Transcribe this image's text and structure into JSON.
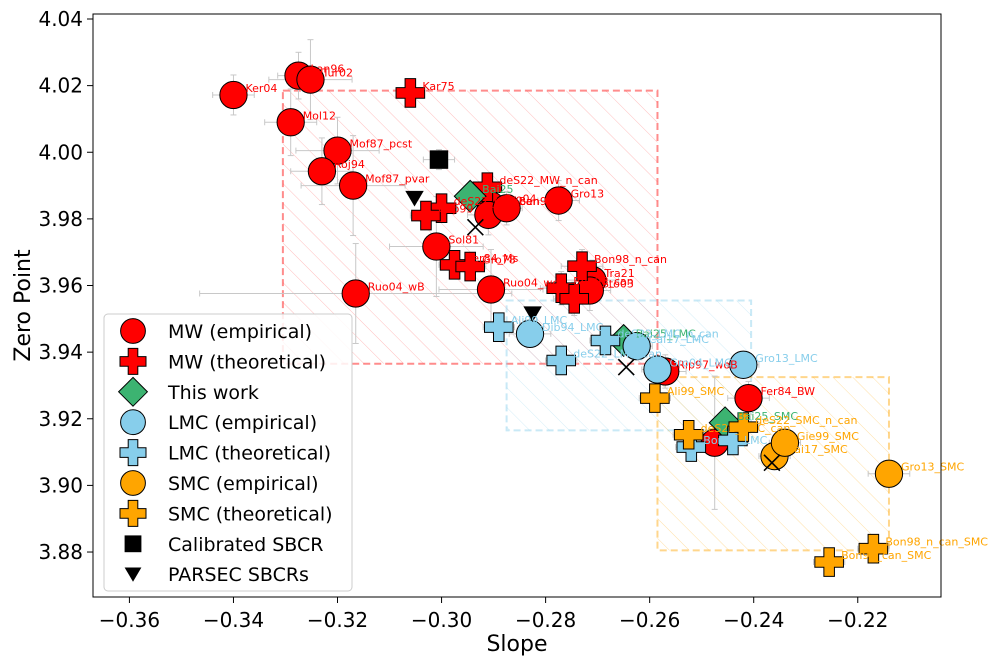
{
  "chart_data": {
    "type": "scatter",
    "title": "",
    "xlabel": "Slope",
    "ylabel": "Zero Point",
    "xlim": [
      -0.367,
      -0.204
    ],
    "ylim": [
      3.8665,
      4.0415
    ],
    "xticks": [
      -0.36,
      -0.34,
      -0.32,
      -0.3,
      -0.28,
      -0.26,
      -0.24,
      -0.22
    ],
    "xtick_labels": [
      "−0.36",
      "−0.34",
      "−0.32",
      "−0.30",
      "−0.28",
      "−0.26",
      "−0.24",
      "−0.22"
    ],
    "yticks": [
      3.88,
      3.9,
      3.92,
      3.94,
      3.96,
      3.98,
      4.0,
      4.02,
      4.04
    ],
    "ytick_labels": [
      "3.88",
      "3.90",
      "3.92",
      "3.94",
      "3.96",
      "3.98",
      "4.00",
      "4.02",
      "4.04"
    ],
    "colors": {
      "mw": "#ff0000",
      "lmc": "#87ceeb",
      "smc": "#ffa500",
      "this_work": "#3cb371",
      "black": "#000000"
    },
    "regions": [
      {
        "name": "MW region",
        "x": [
          -0.3305,
          -0.2585
        ],
        "y": [
          3.9365,
          4.0185
        ],
        "color": "#ff0000"
      },
      {
        "name": "LMC region",
        "x": [
          -0.2875,
          -0.2405
        ],
        "y": [
          3.9165,
          3.9555
        ],
        "color": "#87ceeb"
      },
      {
        "name": "SMC region",
        "x": [
          -0.2585,
          -0.214
        ],
        "y": [
          3.8805,
          3.9325
        ],
        "color": "#ffa500"
      }
    ],
    "series": [
      {
        "name": "MW (empirical)",
        "marker": "circle",
        "color": "#ff0000",
        "label_color": "#ff0000",
        "points": [
          {
            "x": -0.34,
            "y": 4.0172,
            "xerr": 0.004,
            "yerr": 0.006,
            "label": "Ker04"
          },
          {
            "x": -0.3275,
            "y": 4.023,
            "xerr": 0.004,
            "yerr": 0.007,
            "label": "Lan96"
          },
          {
            "x": -0.3252,
            "y": 4.0218,
            "xerr": 0.008,
            "yerr": 0.012,
            "label": "Tur02"
          },
          {
            "x": -0.329,
            "y": 4.009,
            "xerr": 0.005,
            "yerr": 0.01,
            "label": "Mol12"
          },
          {
            "x": -0.32,
            "y": 4.0005,
            "xerr": 0.008,
            "yerr": 0.01,
            "label": "Mof87_pcst"
          },
          {
            "x": -0.323,
            "y": 3.9943,
            "xerr": 0.006,
            "yerr": 0.01,
            "label": "Roj94"
          },
          {
            "x": -0.317,
            "y": 3.99,
            "xerr": 0.01,
            "yerr": 0.015,
            "label": "Mof87_pvar"
          },
          {
            "x": -0.301,
            "y": 3.9717,
            "xerr": 0.009,
            "yerr": 0.015,
            "label": "Sol81"
          },
          {
            "x": -0.3165,
            "y": 3.9576,
            "xerr": 0.03,
            "yerr": 0.015,
            "label": "Ruo04_wB"
          },
          {
            "x": -0.2905,
            "y": 3.9588,
            "xerr": 0.01,
            "yerr": 0.012,
            "label": "Ruo04_woB"
          },
          {
            "x": -0.2905,
            "y": 3.984,
            "xerr": 0.004,
            "yerr": 0.006,
            "label": "Gro04"
          },
          {
            "x": -0.291,
            "y": 3.9812,
            "xerr": 0.004,
            "yerr": 0.006,
            "label": ""
          },
          {
            "x": -0.2875,
            "y": 3.9832,
            "xerr": 0.003,
            "yerr": 0.005,
            "label": "Ben99"
          },
          {
            "x": -0.2775,
            "y": 3.9855,
            "xerr": 0.004,
            "yerr": 0.006,
            "label": "Gro13"
          },
          {
            "x": -0.271,
            "y": 3.9616,
            "xerr": 0.005,
            "yerr": 0.006,
            "label": "Tra21"
          },
          {
            "x": -0.2715,
            "y": 3.9585,
            "xerr": 0.004,
            "yerr": 0.006,
            "label": "Sto03"
          },
          {
            "x": -0.257,
            "y": 3.9342,
            "xerr": 0.004,
            "yerr": 0.005,
            "label": "Rip97_woB"
          },
          {
            "x": -0.241,
            "y": 3.9262,
            "xerr": 0.004,
            "yerr": 0.005,
            "label": "Fer84_BW"
          },
          {
            "x": -0.2475,
            "y": 3.9128,
            "xerr": 0.003,
            "yerr": 0.02,
            "label": ""
          }
        ]
      },
      {
        "name": "MW (theoretical)",
        "marker": "plus",
        "color": "#ff0000",
        "label_color": "#ff0000",
        "points": [
          {
            "x": -0.306,
            "y": 4.0178,
            "xerr": 0.002,
            "yerr": 0.002,
            "label": "Kar75"
          },
          {
            "x": -0.2912,
            "y": 3.9895,
            "xerr": 0.002,
            "yerr": 0.003,
            "label": "deS22_MW_n_can"
          },
          {
            "x": -0.3,
            "y": 3.9832,
            "xerr": 0.003,
            "yerr": 0.004,
            "label": "deS22_MW_can"
          },
          {
            "x": -0.303,
            "y": 3.981,
            "xerr": 0.003,
            "yerr": 0.004,
            "label": "Cap99"
          },
          {
            "x": -0.2975,
            "y": 3.9662,
            "xerr": 0.003,
            "yerr": 0.004,
            "label": "Fer84_Ms"
          },
          {
            "x": -0.2945,
            "y": 3.9657,
            "xerr": 0.003,
            "yerr": 0.004,
            "label": "Gro78"
          },
          {
            "x": -0.273,
            "y": 3.9658,
            "xerr": 0.004,
            "yerr": 0.005,
            "label": "Bon98_n_can"
          },
          {
            "x": -0.277,
            "y": 3.9592,
            "xerr": 0.004,
            "yerr": 0.005,
            "label": "Bon98_can"
          },
          {
            "x": -0.2745,
            "y": 3.956,
            "xerr": 0.004,
            "yerr": 0.005,
            "label": ""
          }
        ]
      },
      {
        "name": "This work",
        "marker": "diamond",
        "color": "#3cb371",
        "label_color": "#3cb371",
        "points": [
          {
            "x": -0.2945,
            "y": 3.9868,
            "xerr": 0.002,
            "yerr": 0.002,
            "label": "Bai25"
          },
          {
            "x": -0.265,
            "y": 3.9435,
            "xerr": 0.002,
            "yerr": 0.002,
            "label": "Bai25_LMC"
          },
          {
            "x": -0.2455,
            "y": 3.9188,
            "xerr": 0.002,
            "yerr": 0.002,
            "label": "Bai25_SMC"
          }
        ]
      },
      {
        "name": "LMC (empirical)",
        "marker": "circle",
        "color": "#87ceeb",
        "label_color": "#87ceeb",
        "points": [
          {
            "x": -0.283,
            "y": 3.9455,
            "xerr": 0.004,
            "yerr": 0.004,
            "label": "Dib94_LMC"
          },
          {
            "x": -0.2625,
            "y": 3.9418,
            "xerr": 0.003,
            "yerr": 0.004,
            "label": "Cai17_LMC"
          },
          {
            "x": -0.2585,
            "y": 3.9348,
            "xerr": 0.003,
            "yerr": 0.004,
            "label": "Gro04_LMC"
          },
          {
            "x": -0.242,
            "y": 3.9362,
            "xerr": 0.003,
            "yerr": 0.004,
            "label": "Gro13_LMC"
          }
        ]
      },
      {
        "name": "LMC (theoretical)",
        "marker": "plus",
        "color": "#87ceeb",
        "label_color": "#87ceeb",
        "points": [
          {
            "x": -0.289,
            "y": 3.9475,
            "xerr": 0.003,
            "yerr": 0.003,
            "label": "Ali99_LMC"
          },
          {
            "x": -0.2685,
            "y": 3.9435,
            "xerr": 0.003,
            "yerr": 0.003,
            "label": "deS22_LMC_n_can"
          },
          {
            "x": -0.277,
            "y": 3.9375,
            "xerr": 0.003,
            "yerr": 0.003,
            "label": "deS22_LMC_can"
          },
          {
            "x": -0.252,
            "y": 3.9115,
            "xerr": 0.003,
            "yerr": 0.003,
            "label": "Bon98_LMC"
          },
          {
            "x": -0.244,
            "y": 3.9135,
            "xerr": 0.003,
            "yerr": 0.003,
            "label": ""
          }
        ]
      },
      {
        "name": "SMC (empirical)",
        "marker": "circle",
        "color": "#ffa500",
        "label_color": "#ffa500",
        "points": [
          {
            "x": -0.214,
            "y": 3.9035,
            "xerr": 0.004,
            "yerr": 0.004,
            "label": "Gro13_SMC"
          },
          {
            "x": -0.236,
            "y": 3.9088,
            "xerr": 0.003,
            "yerr": 0.004,
            "label": "Cai17_SMC"
          },
          {
            "x": -0.234,
            "y": 3.9128,
            "xerr": 0.003,
            "yerr": 0.004,
            "label": "Gie99_SMC"
          }
        ]
      },
      {
        "name": "SMC (theoretical)",
        "marker": "plus",
        "color": "#ffa500",
        "label_color": "#ffa500",
        "points": [
          {
            "x": -0.259,
            "y": 3.9262,
            "xerr": 0.003,
            "yerr": 0.003,
            "label": "Ali99_SMC"
          },
          {
            "x": -0.2525,
            "y": 3.9152,
            "xerr": 0.003,
            "yerr": 0.003,
            "label": "deS22_SMC_can"
          },
          {
            "x": -0.242,
            "y": 3.9175,
            "xerr": 0.003,
            "yerr": 0.003,
            "label": "deS22_SMC_n_can"
          },
          {
            "x": -0.217,
            "y": 3.881,
            "xerr": 0.003,
            "yerr": 0.003,
            "label": "Bon98_n_can_SMC"
          },
          {
            "x": -0.2255,
            "y": 3.877,
            "xerr": 0.003,
            "yerr": 0.003,
            "label": "Bon98_can_SMC"
          }
        ]
      },
      {
        "name": "Calibrated SBCR",
        "marker": "square",
        "color": "#000000",
        "label_color": "#000000",
        "points": [
          {
            "x": -0.3005,
            "y": 3.9978,
            "xerr": 0.003,
            "yerr": 0.003,
            "label": ""
          }
        ]
      },
      {
        "name": "PARSEC SBCRs",
        "marker": "triangle",
        "color": "#000000",
        "label_color": "#000000",
        "points": [
          {
            "x": -0.3052,
            "y": 3.9862,
            "label": ""
          },
          {
            "x": -0.2825,
            "y": 3.9515,
            "label": ""
          }
        ]
      },
      {
        "name": "crosses",
        "marker": "x",
        "color": "#000000",
        "label_color": "#000000",
        "in_legend": false,
        "points": [
          {
            "x": -0.2935,
            "y": 3.9775,
            "label": ""
          },
          {
            "x": -0.2645,
            "y": 3.9355,
            "label": ""
          },
          {
            "x": -0.2365,
            "y": 3.9068,
            "label": ""
          }
        ]
      }
    ],
    "legend": {
      "placement": "lower-left",
      "entries": [
        {
          "label": "MW (empirical)",
          "marker": "circle",
          "color": "#ff0000"
        },
        {
          "label": "MW (theoretical)",
          "marker": "plus",
          "color": "#ff0000"
        },
        {
          "label": "This work",
          "marker": "diamond",
          "color": "#3cb371"
        },
        {
          "label": "LMC (empirical)",
          "marker": "circle",
          "color": "#87ceeb"
        },
        {
          "label": "LMC (theoretical)",
          "marker": "plus",
          "color": "#87ceeb"
        },
        {
          "label": "SMC (empirical)",
          "marker": "circle",
          "color": "#ffa500"
        },
        {
          "label": "SMC (theoretical)",
          "marker": "plus",
          "color": "#ffa500"
        },
        {
          "label": "Calibrated SBCR",
          "marker": "square",
          "color": "#000000"
        },
        {
          "label": "PARSEC SBCRs",
          "marker": "triangle",
          "color": "#000000"
        }
      ]
    }
  }
}
